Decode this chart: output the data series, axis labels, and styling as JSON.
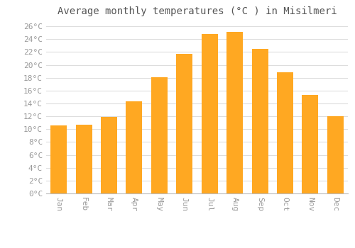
{
  "title": "Average monthly temperatures (°C ) in Misilmeri",
  "months": [
    "Jan",
    "Feb",
    "Mar",
    "Apr",
    "May",
    "Jun",
    "Jul",
    "Aug",
    "Sep",
    "Oct",
    "Nov",
    "Dec"
  ],
  "values": [
    10.6,
    10.7,
    11.9,
    14.3,
    18.1,
    21.7,
    24.8,
    25.1,
    22.5,
    18.9,
    15.3,
    12.0
  ],
  "bar_color": "#FFA822",
  "bar_edge_color": "#FFA822",
  "background_color": "#ffffff",
  "grid_color": "#dddddd",
  "ylim": [
    0,
    27
  ],
  "ytick_step": 2,
  "title_fontsize": 10,
  "tick_fontsize": 8,
  "font_family": "monospace",
  "tick_color": "#999999",
  "title_color": "#555555"
}
